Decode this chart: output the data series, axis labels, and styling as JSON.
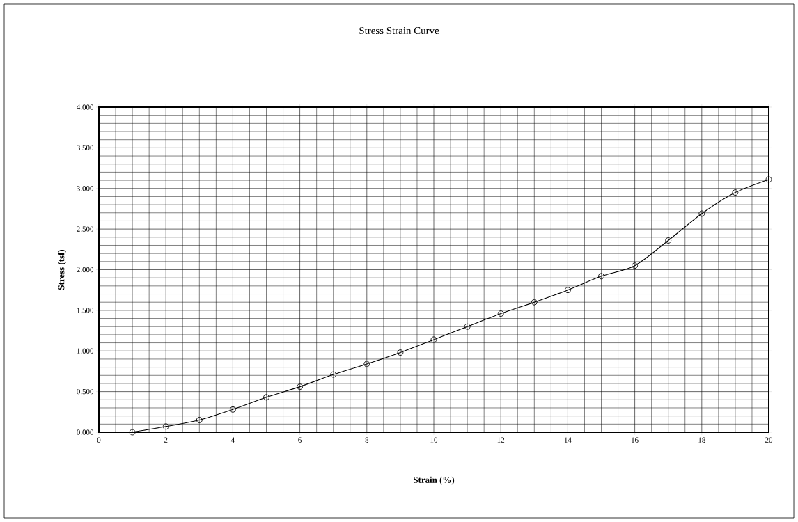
{
  "chart_data": {
    "type": "line",
    "title": "Stress Strain Curve",
    "xlabel": "Strain (%)",
    "ylabel": "Stress (tsf)",
    "x": [
      1,
      2,
      3,
      4,
      5,
      6,
      7,
      8,
      9,
      10,
      11,
      12,
      13,
      14,
      15,
      16,
      17,
      18,
      19,
      20
    ],
    "series": [
      {
        "color": "#000000",
        "values": [
          0.0,
          0.07,
          0.15,
          0.28,
          0.43,
          0.56,
          0.71,
          0.84,
          0.98,
          1.14,
          1.3,
          1.46,
          1.6,
          1.75,
          1.92,
          2.05,
          2.36,
          2.69,
          2.95,
          3.11
        ]
      }
    ],
    "xlim": [
      0,
      20
    ],
    "xticks": [
      0,
      2,
      4,
      6,
      8,
      10,
      12,
      14,
      16,
      18,
      20
    ],
    "ylim": [
      0,
      4
    ],
    "yticks": [
      {
        "value": 0,
        "label": "0.000"
      },
      {
        "value": 0.5,
        "label": "0.500"
      },
      {
        "value": 1,
        "label": "1.000"
      },
      {
        "value": 1.5,
        "label": "1.500"
      },
      {
        "value": 2,
        "label": "2.000"
      },
      {
        "value": 2.5,
        "label": "2.500"
      },
      {
        "value": 3,
        "label": "3.000"
      },
      {
        "value": 3.5,
        "label": "3.500"
      },
      {
        "value": 4,
        "label": "4.000"
      }
    ],
    "grid": true,
    "marker": "circle",
    "line_style": "solid"
  }
}
